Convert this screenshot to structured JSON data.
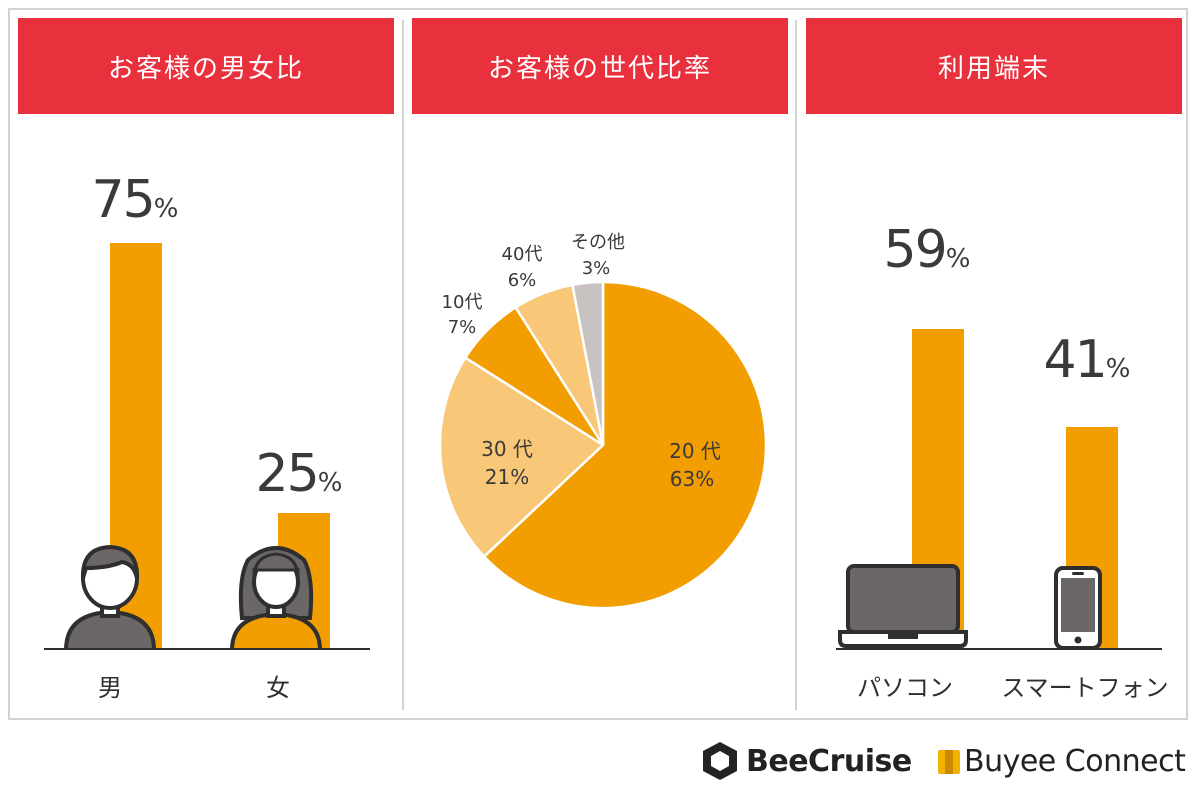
{
  "panels": {
    "gender": {
      "title": "お客様の男女比"
    },
    "age": {
      "title": "お客様の世代比率"
    },
    "device": {
      "title": "利用端末"
    }
  },
  "percent_sign": "%",
  "logos": {
    "beecruise": "BeeCruise",
    "buyee": "Buyee Connect"
  },
  "colors": {
    "header": "#e9303d",
    "bar": "#f29d00",
    "pie_20s": "#f29d00",
    "pie_30s": "#f8c778",
    "pie_10s": "#f29d00",
    "pie_40s": "#f8c778",
    "pie_other": "#c8c3c1"
  },
  "chart_data": [
    {
      "type": "bar",
      "title": "お客様の男女比",
      "categories": [
        "男",
        "女"
      ],
      "values": [
        75,
        25
      ],
      "value_labels": [
        "75",
        "25"
      ],
      "ylim": [
        0,
        100
      ]
    },
    {
      "type": "pie",
      "title": "お客様の世代比率",
      "slices": [
        {
          "label": "20 代",
          "value": 63,
          "value_label": "63%"
        },
        {
          "label": "30 代",
          "value": 21,
          "value_label": "21%"
        },
        {
          "label": "10代",
          "value": 7,
          "value_label": "7%"
        },
        {
          "label": "40代",
          "value": 6,
          "value_label": "6%"
        },
        {
          "label": "その他",
          "value": 3,
          "value_label": "3%"
        }
      ]
    },
    {
      "type": "bar",
      "title": "利用端末",
      "categories": [
        "パソコン",
        "スマートフォン"
      ],
      "values": [
        59,
        41
      ],
      "value_labels": [
        "59",
        "41"
      ],
      "ylim": [
        0,
        100
      ]
    }
  ]
}
